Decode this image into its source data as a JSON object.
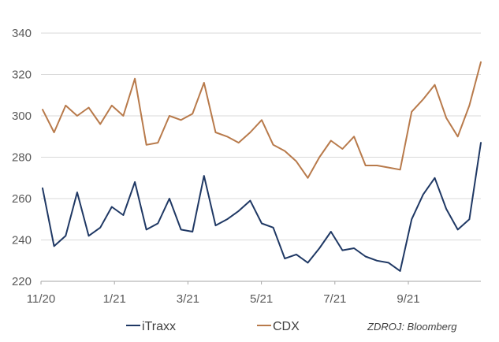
{
  "chart_data": {
    "type": "line",
    "title": "",
    "xlabel": "",
    "ylabel": "",
    "ylim": [
      220,
      340
    ],
    "y_ticks": [
      "220",
      "240",
      "260",
      "280",
      "300",
      "320",
      "340"
    ],
    "x_ticks": [
      "11/20",
      "1/21",
      "3/21",
      "5/21",
      "7/21",
      "9/21"
    ],
    "grid": "horizontal",
    "legend_position": "bottom-left",
    "source": "ZDROJ: Bloomberg",
    "colors": {
      "iTraxx": "#1F3864",
      "CDX": "#B87A4B",
      "grid": "#D9D9D9",
      "axis": "#A6A6A6"
    },
    "series": [
      {
        "name": "iTraxx",
        "x": [
          "11/20",
          "11/20",
          "11/20",
          "12/20",
          "12/20",
          "12/20",
          "1/21",
          "1/21",
          "1/21",
          "2/21",
          "2/21",
          "2/21",
          "3/21",
          "3/21",
          "3/21",
          "4/21",
          "4/21",
          "4/21",
          "5/21",
          "5/21",
          "5/21",
          "6/21",
          "6/21",
          "6/21",
          "7/21",
          "7/21",
          "7/21",
          "8/21",
          "8/21",
          "8/21",
          "9/21",
          "9/21",
          "9/21",
          "10/21",
          "10/21",
          "10/21",
          "11/21",
          "11/21",
          "11/21"
        ],
        "values": [
          265,
          237,
          242,
          263,
          242,
          246,
          256,
          252,
          268,
          245,
          248,
          260,
          245,
          244,
          271,
          247,
          250,
          254,
          259,
          248,
          246,
          231,
          233,
          229,
          236,
          244,
          235,
          236,
          232,
          230,
          229,
          225,
          250,
          262,
          270,
          255,
          245,
          250,
          287
        ]
      },
      {
        "name": "CDX",
        "x": [
          "11/20",
          "11/20",
          "11/20",
          "12/20",
          "12/20",
          "12/20",
          "1/21",
          "1/21",
          "1/21",
          "2/21",
          "2/21",
          "2/21",
          "3/21",
          "3/21",
          "3/21",
          "4/21",
          "4/21",
          "4/21",
          "5/21",
          "5/21",
          "5/21",
          "6/21",
          "6/21",
          "6/21",
          "7/21",
          "7/21",
          "7/21",
          "8/21",
          "8/21",
          "8/21",
          "9/21",
          "9/21",
          "9/21",
          "10/21",
          "10/21",
          "10/21",
          "11/21",
          "11/21",
          "11/21"
        ],
        "values": [
          303,
          292,
          305,
          300,
          304,
          296,
          305,
          300,
          318,
          286,
          287,
          300,
          298,
          301,
          316,
          292,
          290,
          287,
          292,
          298,
          286,
          283,
          278,
          270,
          280,
          288,
          284,
          290,
          276,
          276,
          275,
          274,
          302,
          308,
          315,
          299,
          290,
          305,
          326
        ]
      }
    ]
  }
}
